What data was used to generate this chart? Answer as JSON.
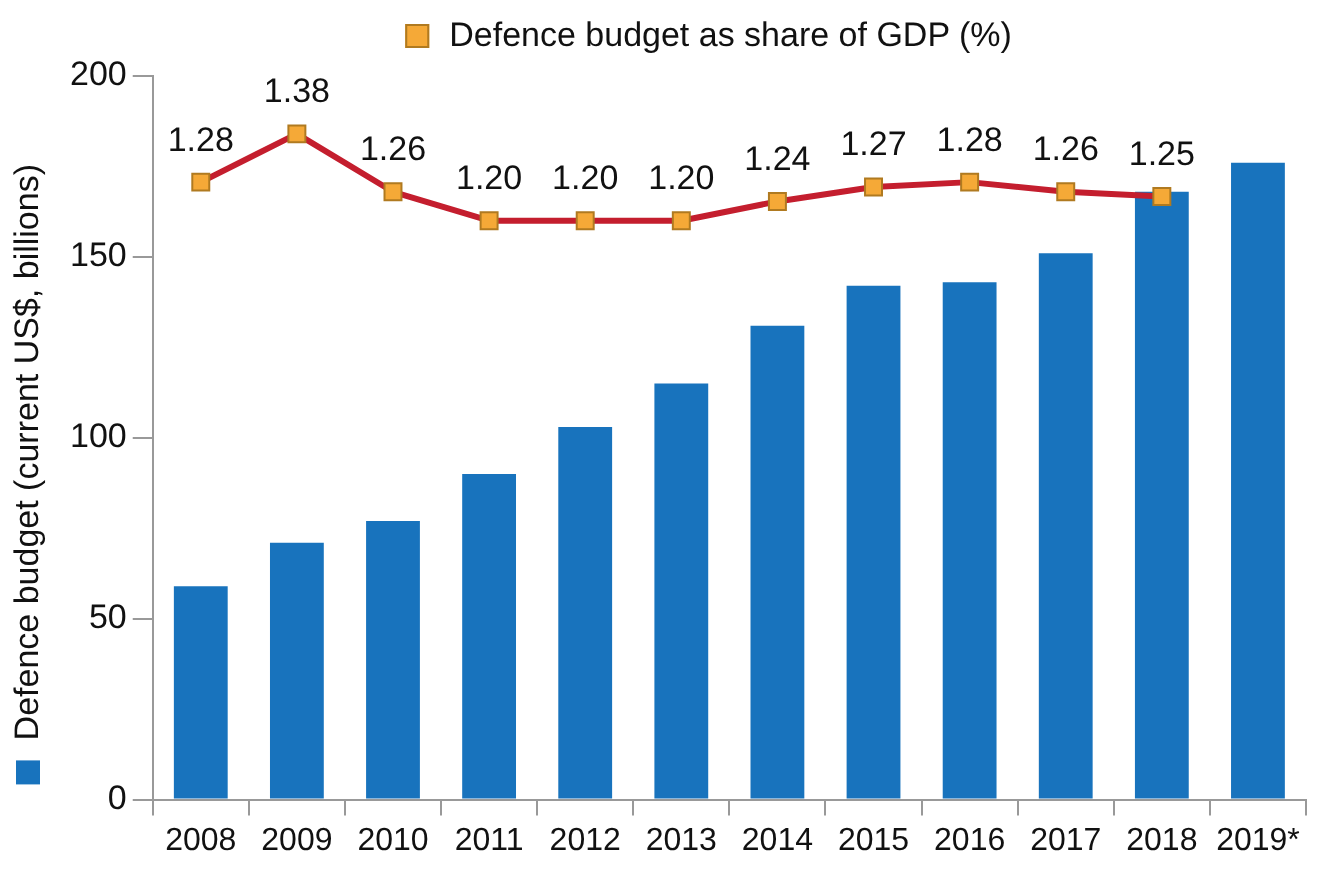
{
  "chart_data": {
    "type": "bar",
    "categories": [
      "2008",
      "2009",
      "2010",
      "2011",
      "2012",
      "2013",
      "2014",
      "2015",
      "2016",
      "2017",
      "2018",
      "2019*"
    ],
    "series": [
      {
        "color": "#1873bd",
        "values": [
          59,
          71,
          77,
          90,
          103,
          115,
          131,
          142,
          143,
          151,
          168,
          176
        ]
      },
      {
        "name": "Defence budget as share of GDP (%)",
        "type": "line",
        "axis": "y2",
        "color": "#c41e2e",
        "colors": [
          "#f5a937",
          "#f5a937",
          "#f5a937",
          "#f5a937",
          "#f5a937",
          "#f5a937",
          "#f5a937",
          "#f5a937",
          "#f5a937",
          "#f5a937",
          "#f5a937",
          "#f5a937"
        ],
        "values": [
          1.28,
          1.38,
          1.26,
          1.2,
          1.2,
          1.2,
          1.24,
          1.27,
          1.28,
          1.26,
          1.25,
          null
        ],
        "value_labels": [
          "1.28",
          "1.38",
          "1.26",
          "1.20",
          "1.20",
          "1.20",
          "1.24",
          "1.27",
          "1.28",
          "1.26",
          "1.25",
          null
        ]
      }
    ],
    "ylim": [
      0,
      200
    ],
    "yticks": [
      0,
      50,
      100,
      150,
      200
    ],
    "y2lim": [
      0,
      1.5
    ],
    "ylabel": "Defence budget (current US$, billions)",
    "grid": false,
    "legend": "top",
    "marker": "square",
    "line_style": "solid"
  }
}
